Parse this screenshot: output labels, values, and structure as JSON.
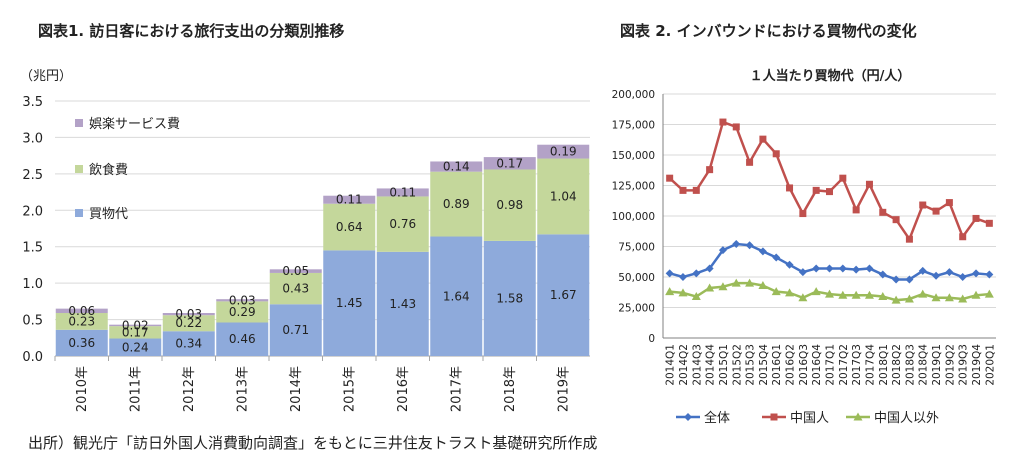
{
  "titles": {
    "left": "図表1. 訪日客における旅行支出の分類別推移",
    "right": "図表 2. インバウンドにおける買物代の変化"
  },
  "source": "出所）観光庁「訪日外国人消費動向調査」をもとに三井住友トラスト基礎研究所作成",
  "chart_data": [
    {
      "type": "bar",
      "stacked": true,
      "unit_label": "（兆円）",
      "categories": [
        "2010年",
        "2011年",
        "2012年",
        "2013年",
        "2014年",
        "2015年",
        "2016年",
        "2017年",
        "2018年",
        "2019年"
      ],
      "series": [
        {
          "name": "買物代",
          "color": "#8eaadb",
          "values": [
            0.36,
            0.24,
            0.34,
            0.46,
            0.71,
            1.45,
            1.43,
            1.64,
            1.58,
            1.67
          ],
          "labels": [
            "0.36",
            "0.24",
            "0.34",
            "0.46",
            "0.71",
            "1.45",
            "1.43",
            "1.64",
            "1.58",
            "1.67"
          ]
        },
        {
          "name": "飲食費",
          "color": "#c4d79b",
          "values": [
            0.23,
            0.17,
            0.22,
            0.29,
            0.43,
            0.64,
            0.76,
            0.89,
            0.98,
            1.04
          ],
          "labels": [
            "0.23",
            "0.17",
            "0.22",
            "0.29",
            "0.43",
            "0.64",
            "0.76",
            "0.89",
            "0.98",
            "1.04"
          ]
        },
        {
          "name": "娯楽サービス費",
          "color": "#b3a2c7",
          "values": [
            0.06,
            0.02,
            0.03,
            0.03,
            0.05,
            0.11,
            0.11,
            0.14,
            0.17,
            0.19
          ],
          "labels": [
            "0.06",
            "0.02",
            "0.03",
            "0.03",
            "0.05",
            "0.11",
            "0.11",
            "0.14",
            "0.17",
            "0.19"
          ]
        }
      ],
      "ylim": [
        0,
        3.5
      ],
      "yticks": [
        "0.0",
        "0.5",
        "1.0",
        "1.5",
        "2.0",
        "2.5",
        "3.0",
        "3.5"
      ],
      "grid": true,
      "legend_position": "top-left inside",
      "legend_order": [
        "娯楽サービス費",
        "飲食費",
        "買物代"
      ]
    },
    {
      "type": "line",
      "title": "１人当たり買物代（円/人）",
      "x": [
        "2014Q1",
        "2014Q2",
        "2014Q3",
        "2014Q4",
        "2015Q1",
        "2015Q2",
        "2015Q3",
        "2015Q4",
        "2016Q1",
        "2016Q2",
        "2016Q3",
        "2016Q4",
        "2017Q1",
        "2017Q2",
        "2017Q3",
        "2017Q4",
        "2018Q1",
        "2018Q2",
        "2018Q3",
        "2018Q4",
        "2019Q1",
        "2019Q2",
        "2019Q3",
        "2019Q4",
        "2020Q1"
      ],
      "series": [
        {
          "name": "全体",
          "color": "#4472c4",
          "marker": "diamond",
          "values": [
            53000,
            50000,
            53000,
            57000,
            72000,
            77000,
            76000,
            71000,
            66000,
            60000,
            54000,
            57000,
            57000,
            57000,
            56000,
            57000,
            52000,
            48000,
            48000,
            55000,
            51000,
            54000,
            50000,
            53000,
            52000
          ]
        },
        {
          "name": "中国人",
          "color": "#c0504d",
          "marker": "square",
          "values": [
            131000,
            121000,
            121000,
            138000,
            177000,
            173000,
            144000,
            163000,
            151000,
            123000,
            102000,
            121000,
            120000,
            131000,
            105000,
            126000,
            103000,
            97000,
            81000,
            109000,
            104000,
            111000,
            83000,
            98000,
            94000
          ]
        },
        {
          "name": "中国人以外",
          "color": "#9bbb59",
          "marker": "triangle",
          "values": [
            38000,
            37000,
            34000,
            41000,
            42000,
            45000,
            45000,
            43000,
            38000,
            37000,
            33000,
            38000,
            36000,
            35000,
            35000,
            35000,
            34000,
            31000,
            32000,
            36000,
            33000,
            33000,
            32000,
            35000,
            36000
          ]
        }
      ],
      "ylim": [
        0,
        200000
      ],
      "yticks": [
        "0",
        "25,000",
        "50,000",
        "75,000",
        "100,000",
        "125,000",
        "150,000",
        "175,000",
        "200,000"
      ],
      "grid": true,
      "legend_position": "bottom"
    }
  ]
}
